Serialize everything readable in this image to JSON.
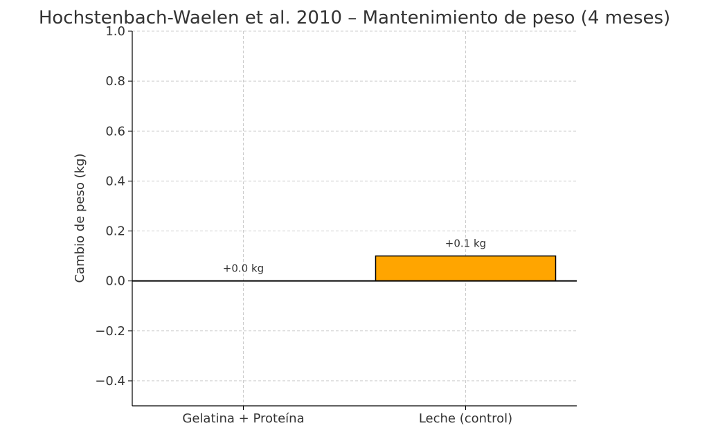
{
  "chart_data": {
    "type": "bar",
    "title": "Hochstenbach-Waelen et al. 2010 – Mantenimiento de peso (4 meses)",
    "xlabel": "",
    "ylabel": "Cambio de peso (kg)",
    "categories": [
      "Gelatina + Proteína",
      "Leche (control)"
    ],
    "values": [
      0.0,
      0.1
    ],
    "data_labels": [
      "+0.0 kg",
      "+0.1 kg"
    ],
    "ylim": [
      -0.5,
      1.0
    ],
    "yticks": [
      -0.4,
      -0.2,
      0.0,
      0.2,
      0.4,
      0.6,
      0.8,
      1.0
    ],
    "ytick_labels": [
      "−0.4",
      "−0.2",
      "0.0",
      "0.2",
      "0.4",
      "0.6",
      "0.8",
      "1.0"
    ],
    "grid": true,
    "colors": {
      "bar": "#FFA500",
      "bar_edge": "#000000",
      "grid": "#cccccc",
      "text": "#333333"
    }
  }
}
